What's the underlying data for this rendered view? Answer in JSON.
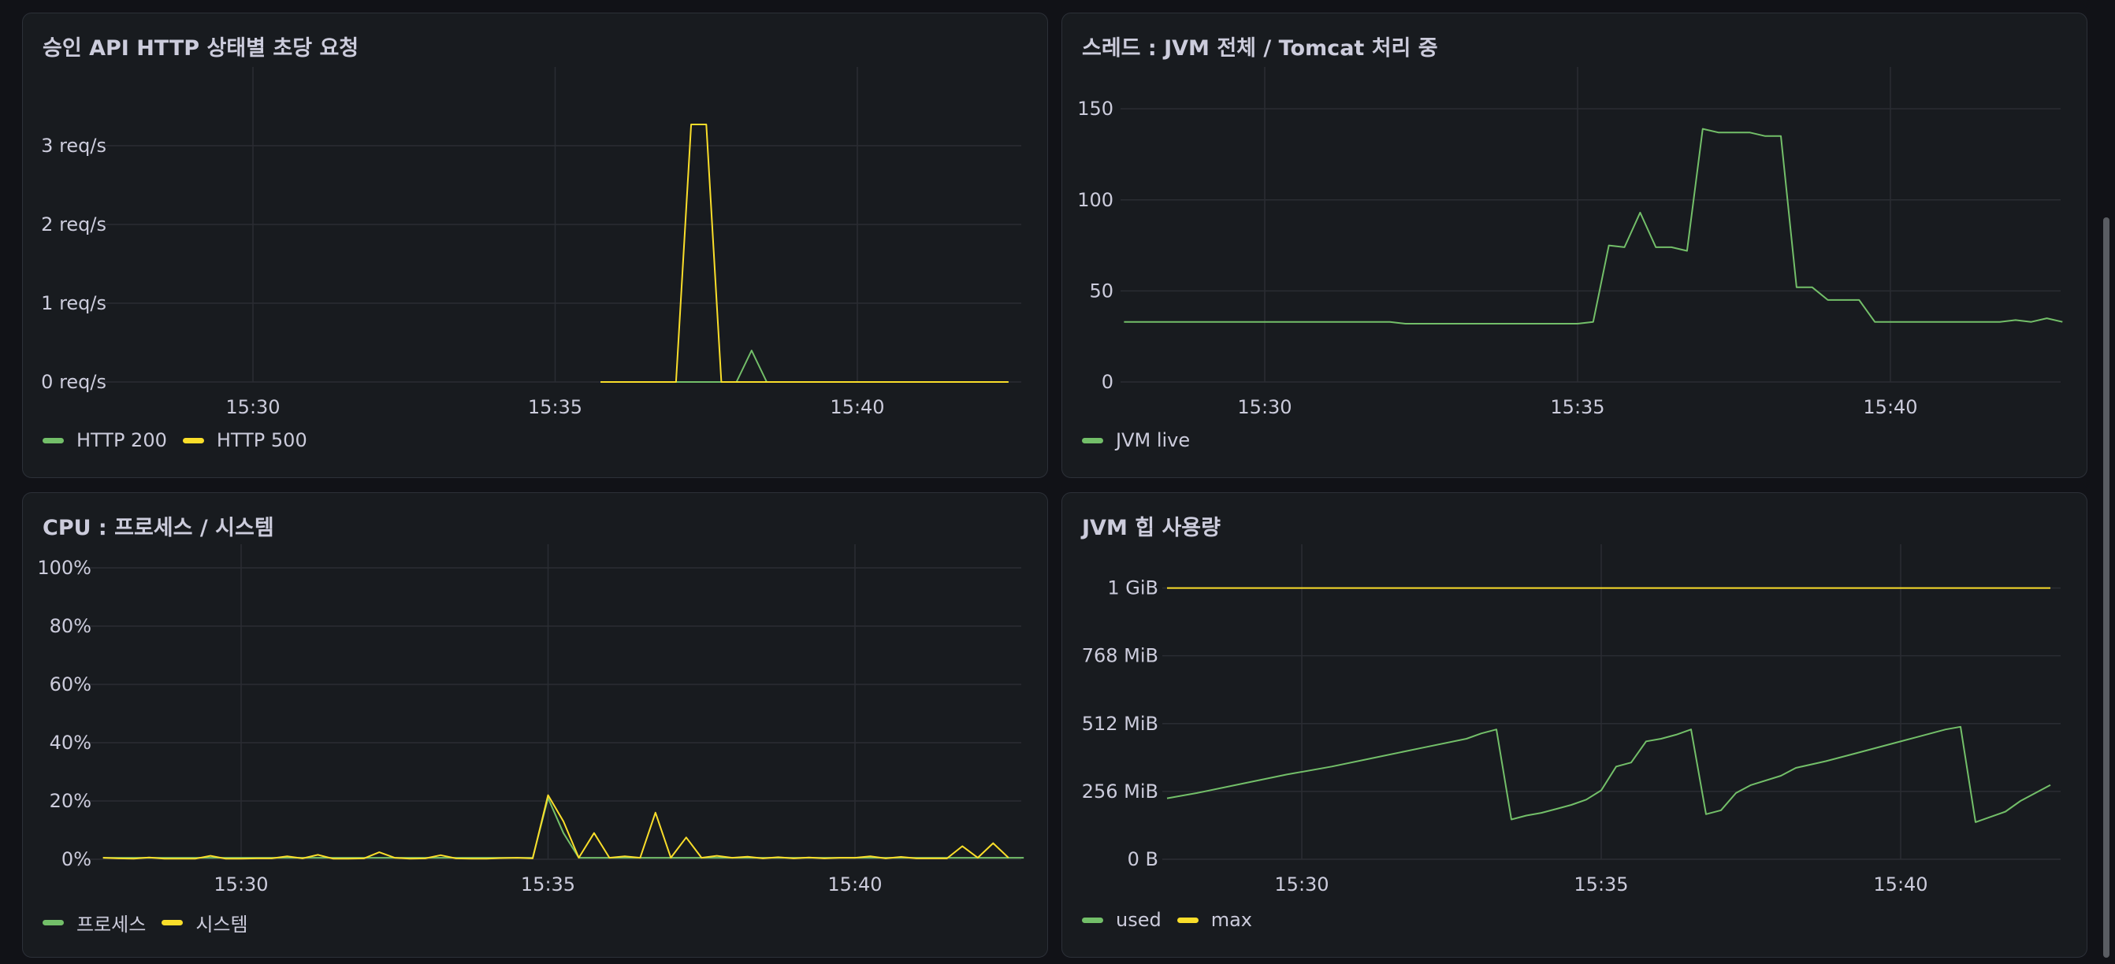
{
  "panels": [
    {
      "title": "승인 API HTTP 상태별 초당 요청",
      "legend": [
        {
          "name": "HTTP 200",
          "color": "#73bf69"
        },
        {
          "name": "HTTP 500",
          "color": "#fade2a"
        }
      ]
    },
    {
      "title": "스레드 : JVM 전체 / Tomcat 처리 중",
      "legend": [
        {
          "name": "JVM live",
          "color": "#73bf69"
        }
      ]
    },
    {
      "title": "CPU : 프로세스 / 시스템",
      "legend": [
        {
          "name": "프로세스",
          "color": "#73bf69"
        },
        {
          "name": "시스템",
          "color": "#fade2a"
        }
      ]
    },
    {
      "title": "JVM 힙 사용량",
      "legend": [
        {
          "name": "used",
          "color": "#73bf69"
        },
        {
          "name": "max",
          "color": "#fade2a"
        }
      ]
    }
  ],
  "chart_data": [
    {
      "type": "line",
      "title": "승인 API HTTP 상태별 초당 요청",
      "x_unit": "time",
      "x_ticks": [
        "15:30",
        "15:35",
        "15:40"
      ],
      "y_ticks": [
        "0 req/s",
        "1 req/s",
        "2 req/s",
        "3 req/s"
      ],
      "ylim": [
        0,
        3.7
      ],
      "grid": true,
      "legend_position": "bottom-left",
      "series": [
        {
          "name": "HTTP 200",
          "color": "#73bf69",
          "points": [
            [
              "15:35:45",
              0
            ],
            [
              "15:38:00",
              0
            ],
            [
              "15:38:15",
              0.4
            ],
            [
              "15:38:30",
              0
            ],
            [
              "15:42:30",
              0
            ]
          ]
        },
        {
          "name": "HTTP 500",
          "color": "#fade2a",
          "points": [
            [
              "15:35:45",
              0
            ],
            [
              "15:37:00",
              0
            ],
            [
              "15:37:15",
              3.27
            ],
            [
              "15:37:30",
              3.27
            ],
            [
              "15:37:45",
              0
            ],
            [
              "15:42:30",
              0
            ]
          ]
        }
      ]
    },
    {
      "type": "line",
      "title": "스레드 : JVM 전체 / Tomcat 처리 중",
      "x_unit": "time",
      "x_ticks": [
        "15:30",
        "15:35",
        "15:40"
      ],
      "y_ticks": [
        "0",
        "50",
        "100",
        "150"
      ],
      "ylim": [
        0,
        160
      ],
      "grid": true,
      "legend_position": "bottom-left",
      "series": [
        {
          "name": "JVM live",
          "color": "#73bf69",
          "points": [
            [
              "15:27:45",
              33
            ],
            [
              "15:32:00",
              33
            ],
            [
              "15:32:15",
              32
            ],
            [
              "15:35:00",
              32
            ],
            [
              "15:35:15",
              33
            ],
            [
              "15:35:30",
              75
            ],
            [
              "15:35:45",
              74
            ],
            [
              "15:36:00",
              93
            ],
            [
              "15:36:15",
              74
            ],
            [
              "15:36:30",
              74
            ],
            [
              "15:36:45",
              72
            ],
            [
              "15:37:00",
              139
            ],
            [
              "15:37:15",
              137
            ],
            [
              "15:37:45",
              137
            ],
            [
              "15:38:00",
              135
            ],
            [
              "15:38:15",
              135
            ],
            [
              "15:38:30",
              52
            ],
            [
              "15:38:45",
              52
            ],
            [
              "15:39:00",
              45
            ],
            [
              "15:39:30",
              45
            ],
            [
              "15:39:45",
              33
            ],
            [
              "15:41:45",
              33
            ],
            [
              "15:42:00",
              34
            ],
            [
              "15:42:15",
              33
            ],
            [
              "15:42:30",
              35
            ],
            [
              "15:42:45",
              33
            ]
          ]
        }
      ]
    },
    {
      "type": "line",
      "title": "CPU : 프로세스 / 시스템",
      "x_unit": "time",
      "x_ticks": [
        "15:30",
        "15:35",
        "15:40"
      ],
      "y_ticks": [
        "0%",
        "20%",
        "40%",
        "60%",
        "80%",
        "100%"
      ],
      "ylim": [
        0,
        100
      ],
      "grid": true,
      "legend_position": "bottom-left",
      "series": [
        {
          "name": "프로세스",
          "color": "#73bf69",
          "points": [
            [
              "15:27:45",
              0.5
            ],
            [
              "15:34:45",
              0.5
            ],
            [
              "15:35:00",
              21
            ],
            [
              "15:35:15",
              9
            ],
            [
              "15:35:30",
              0.5
            ],
            [
              "15:42:45",
              0.5
            ]
          ]
        },
        {
          "name": "시스템",
          "color": "#fade2a",
          "points": [
            [
              "15:27:45",
              0.5
            ],
            [
              "15:28:00",
              0.3
            ],
            [
              "15:28:15",
              0.2
            ],
            [
              "15:28:30",
              0.6
            ],
            [
              "15:28:45",
              0.2
            ],
            [
              "15:29:00",
              0.2
            ],
            [
              "15:29:15",
              0.2
            ],
            [
              "15:29:30",
              1.2
            ],
            [
              "15:29:45",
              0.2
            ],
            [
              "15:30:00",
              0.2
            ],
            [
              "15:30:15",
              0.3
            ],
            [
              "15:30:30",
              0.3
            ],
            [
              "15:30:45",
              1.0
            ],
            [
              "15:31:00",
              0.3
            ],
            [
              "15:31:15",
              1.5
            ],
            [
              "15:31:30",
              0.2
            ],
            [
              "15:31:45",
              0.2
            ],
            [
              "15:32:00",
              0.3
            ],
            [
              "15:32:15",
              2.4
            ],
            [
              "15:32:30",
              0.5
            ],
            [
              "15:32:45",
              0.2
            ],
            [
              "15:33:00",
              0.3
            ],
            [
              "15:33:15",
              1.4
            ],
            [
              "15:33:30",
              0.3
            ],
            [
              "15:33:45",
              0.2
            ],
            [
              "15:34:00",
              0.2
            ],
            [
              "15:34:15",
              0.4
            ],
            [
              "15:34:30",
              0.5
            ],
            [
              "15:34:45",
              0.3
            ],
            [
              "15:35:00",
              22
            ],
            [
              "15:35:15",
              13
            ],
            [
              "15:35:30",
              0.5
            ],
            [
              "15:35:45",
              9
            ],
            [
              "15:36:00",
              0.5
            ],
            [
              "15:36:15",
              1.0
            ],
            [
              "15:36:30",
              0.5
            ],
            [
              "15:36:45",
              16
            ],
            [
              "15:37:00",
              0.5
            ],
            [
              "15:37:15",
              7.5
            ],
            [
              "15:37:30",
              0.5
            ],
            [
              "15:37:45",
              1.2
            ],
            [
              "15:38:00",
              0.5
            ],
            [
              "15:38:15",
              0.9
            ],
            [
              "15:38:30",
              0.3
            ],
            [
              "15:38:45",
              0.7
            ],
            [
              "15:39:00",
              0.3
            ],
            [
              "15:39:15",
              0.6
            ],
            [
              "15:39:30",
              0.3
            ],
            [
              "15:39:45",
              0.5
            ],
            [
              "15:40:00",
              0.5
            ],
            [
              "15:40:15",
              1.0
            ],
            [
              "15:40:30",
              0.3
            ],
            [
              "15:40:45",
              0.8
            ],
            [
              "15:41:00",
              0.3
            ],
            [
              "15:41:15",
              0.3
            ],
            [
              "15:41:30",
              0.3
            ],
            [
              "15:41:45",
              4.5
            ],
            [
              "15:42:00",
              0.5
            ],
            [
              "15:42:15",
              5.5
            ],
            [
              "15:42:30",
              0.5
            ]
          ]
        }
      ]
    },
    {
      "type": "line",
      "title": "JVM 힙 사용량",
      "x_unit": "time",
      "x_ticks": [
        "15:30",
        "15:35",
        "15:40"
      ],
      "y_ticks": [
        "0 B",
        "256 MiB",
        "512 MiB",
        "768 MiB",
        "1 GiB"
      ],
      "y_unit": "MiB",
      "ylim": [
        0,
        1100
      ],
      "grid": true,
      "legend_position": "bottom-left",
      "series": [
        {
          "name": "used",
          "color": "#73bf69",
          "points": [
            [
              "15:27:45",
              230
            ],
            [
              "15:28:15",
              250
            ],
            [
              "15:29:00",
              285
            ],
            [
              "15:29:45",
              320
            ],
            [
              "15:30:30",
              350
            ],
            [
              "15:31:15",
              385
            ],
            [
              "15:32:00",
              420
            ],
            [
              "15:32:45",
              455
            ],
            [
              "15:33:00",
              475
            ],
            [
              "15:33:15",
              490
            ],
            [
              "15:33:30",
              150
            ],
            [
              "15:33:45",
              165
            ],
            [
              "15:34:00",
              175
            ],
            [
              "15:34:15",
              190
            ],
            [
              "15:34:30",
              205
            ],
            [
              "15:34:45",
              225
            ],
            [
              "15:35:00",
              260
            ],
            [
              "15:35:15",
              350
            ],
            [
              "15:35:30",
              365
            ],
            [
              "15:35:45",
              445
            ],
            [
              "15:36:00",
              455
            ],
            [
              "15:36:15",
              470
            ],
            [
              "15:36:30",
              490
            ],
            [
              "15:36:45",
              170
            ],
            [
              "15:37:00",
              185
            ],
            [
              "15:37:15",
              250
            ],
            [
              "15:37:30",
              280
            ],
            [
              "15:38:00",
              315
            ],
            [
              "15:38:15",
              345
            ],
            [
              "15:38:45",
              370
            ],
            [
              "15:39:15",
              400
            ],
            [
              "15:39:45",
              430
            ],
            [
              "15:40:15",
              460
            ],
            [
              "15:40:45",
              490
            ],
            [
              "15:41:00",
              500
            ],
            [
              "15:41:15",
              140
            ],
            [
              "15:41:45",
              180
            ],
            [
              "15:42:00",
              220
            ],
            [
              "15:42:15",
              250
            ],
            [
              "15:42:30",
              280
            ]
          ]
        },
        {
          "name": "max",
          "color": "#fade2a",
          "points": [
            [
              "15:27:45",
              1024
            ],
            [
              "15:42:30",
              1024
            ]
          ]
        }
      ]
    }
  ]
}
